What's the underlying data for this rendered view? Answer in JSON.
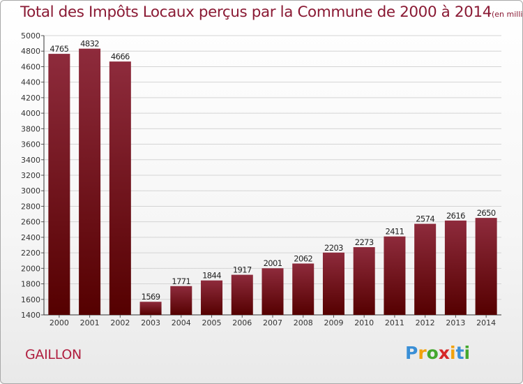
{
  "title": "Total des Impôts Locaux perçus par la Commune de 2000 à 2014",
  "unit": "(en milliers d'€)",
  "commune": "GAILLON",
  "logo_text": "Proxiti",
  "colors": {
    "title": "#8a1a34",
    "bar_top": "#8e2b3c",
    "bar_bottom": "#550000",
    "commune": "#b01e3f"
  },
  "chart_data": {
    "type": "bar",
    "categories": [
      "2000",
      "2001",
      "2002",
      "2003",
      "2004",
      "2005",
      "2006",
      "2007",
      "2008",
      "2009",
      "2010",
      "2011",
      "2012",
      "2013",
      "2014"
    ],
    "values": [
      4765,
      4832,
      4666,
      1569,
      1771,
      1844,
      1917,
      2001,
      2062,
      2203,
      2273,
      2411,
      2574,
      2616,
      2650
    ],
    "ylim": [
      1400,
      5000
    ],
    "yticks": [
      1400,
      1600,
      1800,
      2000,
      2200,
      2400,
      2600,
      2800,
      3000,
      3200,
      3400,
      3600,
      3800,
      4000,
      4200,
      4400,
      4600,
      4800,
      5000
    ],
    "grid": true,
    "xlabel": "",
    "ylabel": ""
  }
}
